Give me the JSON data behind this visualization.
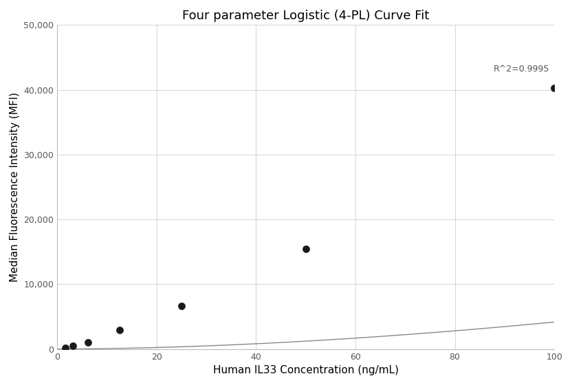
{
  "title": "Four parameter Logistic (4-PL) Curve Fit",
  "xlabel": "Human IL33 Concentration (ng/mL)",
  "ylabel": "Median Fluorescence Intensity (MFI)",
  "scatter_x": [
    1.5625,
    3.125,
    6.25,
    12.5,
    25,
    50,
    100
  ],
  "scatter_y": [
    200,
    450,
    1000,
    2900,
    6600,
    15400,
    40300
  ],
  "xlim": [
    0,
    100
  ],
  "ylim": [
    0,
    50000
  ],
  "yticks": [
    0,
    10000,
    20000,
    30000,
    40000,
    50000
  ],
  "xticks": [
    0,
    20,
    40,
    60,
    80,
    100
  ],
  "r2_text": "R^2=0.9995",
  "r2_x": 99,
  "r2_y": 42500,
  "curve_color": "#888888",
  "scatter_color": "#1a1a1a",
  "background_color": "#ffffff",
  "grid_color": "#cccccc",
  "title_fontsize": 13,
  "label_fontsize": 11,
  "annotation_fontsize": 9
}
